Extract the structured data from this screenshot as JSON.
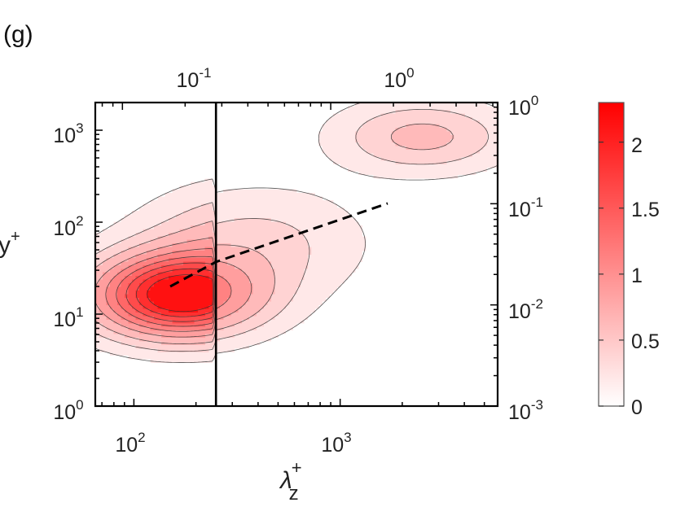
{
  "chart_data": {
    "type": "contour",
    "panel_label": "(g)",
    "xlabel_symbol": "λ",
    "xlabel_sub": "z",
    "xlabel_sup": "+",
    "ylabel": "y",
    "ylabel_sup": "+",
    "x_scale": "log",
    "y_scale": "log",
    "xlim": [
      65,
      5800
    ],
    "ylim": [
      1,
      2000
    ],
    "x_ticks": [
      {
        "value": 100,
        "base": "10",
        "exp": "2"
      },
      {
        "value": 1000,
        "base": "10",
        "exp": "3"
      }
    ],
    "y_ticks": [
      {
        "value": 1,
        "base": "10",
        "exp": "0"
      },
      {
        "value": 10,
        "base": "10",
        "exp": "1"
      },
      {
        "value": 100,
        "base": "10",
        "exp": "2"
      },
      {
        "value": 1000,
        "base": "10",
        "exp": "3"
      }
    ],
    "top_axis": {
      "scale": "log",
      "ticks": [
        {
          "x_value": 88,
          "base": "10",
          "exp": "-1"
        },
        {
          "x_value": 900,
          "base": "10",
          "exp": "0"
        }
      ]
    },
    "right_axis": {
      "scale": "log",
      "lim": [
        0.001,
        1
      ],
      "ticks": [
        {
          "value": 0.001,
          "base": "10",
          "exp": "-3"
        },
        {
          "value": 0.01,
          "base": "10",
          "exp": "-2"
        },
        {
          "value": 0.1,
          "base": "10",
          "exp": "-1"
        },
        {
          "value": 1,
          "base": "10",
          "exp": "0"
        }
      ]
    },
    "colorbar": {
      "min": 0,
      "max": 2.3,
      "ticks": [
        "0",
        "0.5",
        "1",
        "1.5",
        "2"
      ],
      "colors": [
        "#ffffff",
        "#ff0000"
      ]
    },
    "vertical_line_x": 250,
    "dashed_line": [
      [
        150,
        20
      ],
      [
        250,
        37
      ],
      [
        1700,
        160
      ]
    ],
    "contour_levels": [
      0.12,
      0.3,
      0.5,
      0.75,
      1.0,
      1.25,
      1.5,
      1.75,
      2.0
    ],
    "peaks": [
      {
        "x": 170,
        "y": 16,
        "height": 2.3,
        "wx": 0.28,
        "wy": 0.3
      },
      {
        "x": 2500,
        "y": 850,
        "height": 1.05,
        "wx": 0.28,
        "wy": 0.26
      },
      {
        "x": 400,
        "y": 60,
        "height": 0.65,
        "wx": 0.35,
        "wy": 0.4
      }
    ],
    "grid": false
  }
}
